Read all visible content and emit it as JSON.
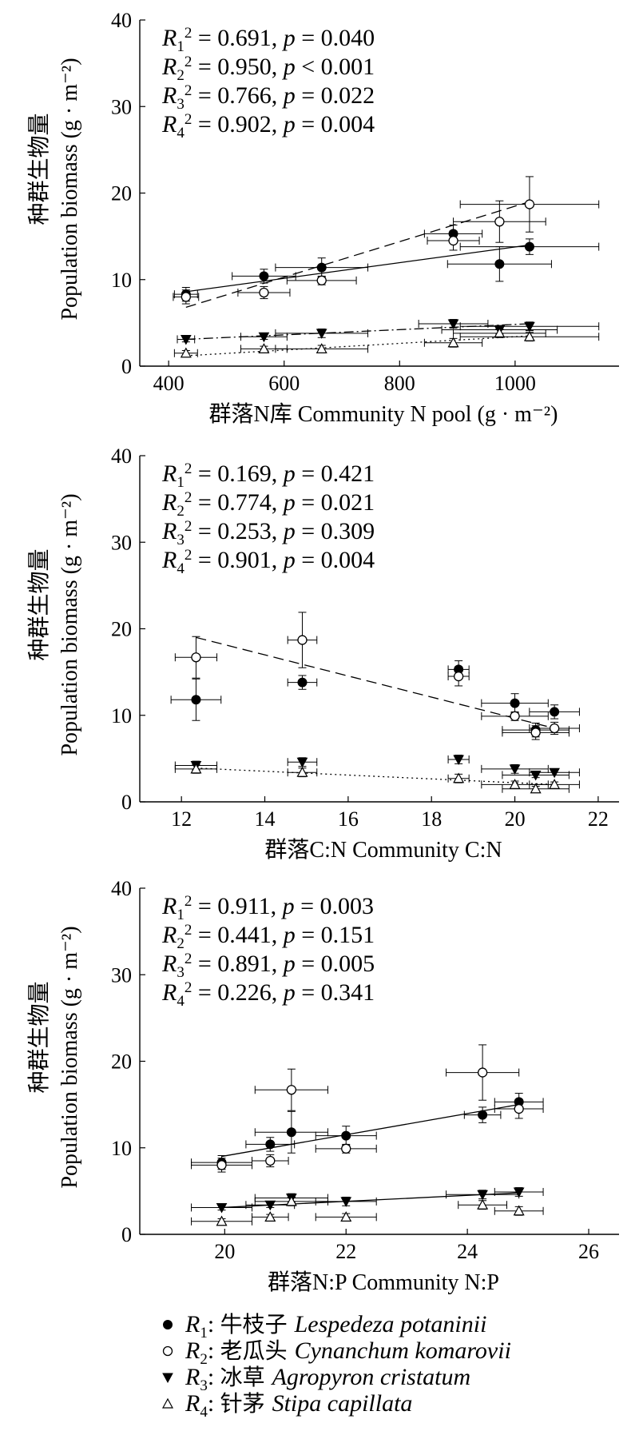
{
  "chart_data": [
    {
      "type": "scatter",
      "xlabel": "群落N库  Community N pool  (g · m⁻²)",
      "ylabel_zh": "种群生物量",
      "ylabel_en": "Population biomass (g · m⁻²)",
      "xlim": [
        350,
        1180
      ],
      "ylim": [
        0,
        40
      ],
      "xticks": [
        400,
        600,
        800,
        1000
      ],
      "yticks": [
        0,
        10,
        20,
        30,
        40
      ],
      "stats": [
        {
          "sub": "1",
          "r2": "0.691",
          "p": "p = 0.040"
        },
        {
          "sub": "2",
          "r2": "0.950",
          "p": "p < 0.001"
        },
        {
          "sub": "3",
          "r2": "0.766",
          "p": "p = 0.022"
        },
        {
          "sub": "4",
          "r2": "0.902",
          "p": "p = 0.004"
        }
      ],
      "series": [
        {
          "name": "R1",
          "marker": "filled-circle",
          "line": "solid",
          "fit": [
            [
              430,
              8.6
            ],
            [
              1025,
              14.0
            ]
          ],
          "points": [
            {
              "x": 430,
              "y": 8.3,
              "xerr": 20,
              "yerr": 0.8
            },
            {
              "x": 565,
              "y": 10.4,
              "xerr": 55,
              "yerr": 0.8
            },
            {
              "x": 665,
              "y": 11.4,
              "xerr": 80,
              "yerr": 1.1
            },
            {
              "x": 893,
              "y": 15.3,
              "xerr": 50,
              "yerr": 1.0
            },
            {
              "x": 973,
              "y": 11.8,
              "xerr": 90,
              "yerr": 2.0
            },
            {
              "x": 1025,
              "y": 13.8,
              "xerr": 120,
              "yerr": 0.9
            }
          ]
        },
        {
          "name": "R2",
          "marker": "open-circle",
          "line": "dashed",
          "fit": [
            [
              430,
              6.8
            ],
            [
              1025,
              19.0
            ]
          ],
          "points": [
            {
              "x": 430,
              "y": 8.0,
              "xerr": 22,
              "yerr": 0.8
            },
            {
              "x": 565,
              "y": 8.5,
              "xerr": 45,
              "yerr": 0.7
            },
            {
              "x": 665,
              "y": 9.9,
              "xerr": 60,
              "yerr": 0.5
            },
            {
              "x": 893,
              "y": 14.5,
              "xerr": 45,
              "yerr": 1.1
            },
            {
              "x": 973,
              "y": 16.7,
              "xerr": 80,
              "yerr": 2.4
            },
            {
              "x": 1025,
              "y": 18.7,
              "xerr": 120,
              "yerr": 3.2
            }
          ]
        },
        {
          "name": "R3",
          "marker": "filled-triangle-down",
          "line": "dashdot",
          "fit": [
            [
              430,
              3.1
            ],
            [
              1025,
              4.9
            ]
          ],
          "points": [
            {
              "x": 430,
              "y": 3.1,
              "xerr": 15,
              "yerr": 0.3
            },
            {
              "x": 565,
              "y": 3.4,
              "xerr": 40,
              "yerr": 0.3
            },
            {
              "x": 665,
              "y": 3.8,
              "xerr": 80,
              "yerr": 0.5
            },
            {
              "x": 893,
              "y": 4.9,
              "xerr": 60,
              "yerr": 0.5
            },
            {
              "x": 973,
              "y": 4.2,
              "xerr": 100,
              "yerr": 0.5
            },
            {
              "x": 1025,
              "y": 4.6,
              "xerr": 120,
              "yerr": 0.5
            }
          ]
        },
        {
          "name": "R4",
          "marker": "open-triangle-up",
          "line": "dotted",
          "fit": [
            [
              430,
              1.2
            ],
            [
              1025,
              3.5
            ]
          ],
          "points": [
            {
              "x": 430,
              "y": 1.5,
              "xerr": 20,
              "yerr": 0.3
            },
            {
              "x": 565,
              "y": 2.0,
              "xerr": 40,
              "yerr": 0.3
            },
            {
              "x": 665,
              "y": 2.0,
              "xerr": 80,
              "yerr": 0.4
            },
            {
              "x": 893,
              "y": 2.7,
              "xerr": 50,
              "yerr": 0.5
            },
            {
              "x": 973,
              "y": 3.8,
              "xerr": 80,
              "yerr": 0.5
            },
            {
              "x": 1025,
              "y": 3.4,
              "xerr": 120,
              "yerr": 0.5
            }
          ]
        }
      ]
    },
    {
      "type": "scatter",
      "xlabel": "群落C:N  Community C:N",
      "ylabel_zh": "种群生物量",
      "ylabel_en": "Population biomass (g · m⁻²)",
      "xlim": [
        11,
        22.5
      ],
      "ylim": [
        0,
        40
      ],
      "xticks": [
        12,
        14,
        16,
        18,
        20,
        22
      ],
      "yticks": [
        0,
        10,
        20,
        30,
        40
      ],
      "stats": [
        {
          "sub": "1",
          "r2": "0.169",
          "p": "p = 0.421"
        },
        {
          "sub": "2",
          "r2": "0.774",
          "p": "p = 0.021"
        },
        {
          "sub": "3",
          "r2": "0.253",
          "p": "p = 0.309"
        },
        {
          "sub": "4",
          "r2": "0.901",
          "p": "p = 0.004"
        }
      ],
      "series": [
        {
          "name": "R1",
          "marker": "filled-circle",
          "line": "none",
          "fit": null,
          "points": [
            {
              "x": 12.35,
              "y": 11.8,
              "xerr": 0.6,
              "yerr": 2.4
            },
            {
              "x": 14.9,
              "y": 13.8,
              "xerr": 0.35,
              "yerr": 0.8
            },
            {
              "x": 18.65,
              "y": 15.3,
              "xerr": 0.25,
              "yerr": 1.0
            },
            {
              "x": 20.0,
              "y": 11.4,
              "xerr": 0.8,
              "yerr": 1.1
            },
            {
              "x": 20.5,
              "y": 8.3,
              "xerr": 0.8,
              "yerr": 0.8
            },
            {
              "x": 20.95,
              "y": 10.4,
              "xerr": 0.6,
              "yerr": 0.8
            }
          ]
        },
        {
          "name": "R2",
          "marker": "open-circle",
          "line": "dashed",
          "fit": [
            [
              12.35,
              19.0
            ],
            [
              20.95,
              8.5
            ]
          ],
          "points": [
            {
              "x": 12.35,
              "y": 16.7,
              "xerr": 0.5,
              "yerr": 2.4
            },
            {
              "x": 14.9,
              "y": 18.7,
              "xerr": 0.35,
              "yerr": 3.2
            },
            {
              "x": 18.65,
              "y": 14.5,
              "xerr": 0.25,
              "yerr": 1.1
            },
            {
              "x": 20.0,
              "y": 9.9,
              "xerr": 0.8,
              "yerr": 0.5
            },
            {
              "x": 20.5,
              "y": 8.0,
              "xerr": 0.8,
              "yerr": 0.8
            },
            {
              "x": 20.95,
              "y": 8.5,
              "xerr": 0.6,
              "yerr": 0.7
            }
          ]
        },
        {
          "name": "R3",
          "marker": "filled-triangle-down",
          "line": "none",
          "fit": null,
          "points": [
            {
              "x": 12.35,
              "y": 4.2,
              "xerr": 0.5,
              "yerr": 0.5
            },
            {
              "x": 14.9,
              "y": 4.6,
              "xerr": 0.35,
              "yerr": 0.5
            },
            {
              "x": 18.65,
              "y": 4.9,
              "xerr": 0.25,
              "yerr": 0.5
            },
            {
              "x": 20.0,
              "y": 3.8,
              "xerr": 0.8,
              "yerr": 0.5
            },
            {
              "x": 20.5,
              "y": 3.1,
              "xerr": 0.8,
              "yerr": 0.3
            },
            {
              "x": 20.95,
              "y": 3.4,
              "xerr": 0.6,
              "yerr": 0.3
            }
          ]
        },
        {
          "name": "R4",
          "marker": "open-triangle-up",
          "line": "dotted",
          "fit": [
            [
              12.35,
              3.9
            ],
            [
              20.95,
              2.0
            ]
          ],
          "points": [
            {
              "x": 12.35,
              "y": 3.8,
              "xerr": 0.5,
              "yerr": 0.5
            },
            {
              "x": 14.9,
              "y": 3.4,
              "xerr": 0.35,
              "yerr": 0.5
            },
            {
              "x": 18.65,
              "y": 2.7,
              "xerr": 0.25,
              "yerr": 0.5
            },
            {
              "x": 20.0,
              "y": 2.0,
              "xerr": 0.8,
              "yerr": 0.4
            },
            {
              "x": 20.5,
              "y": 1.5,
              "xerr": 0.8,
              "yerr": 0.3
            },
            {
              "x": 20.95,
              "y": 2.0,
              "xerr": 0.6,
              "yerr": 0.3
            }
          ]
        }
      ]
    },
    {
      "type": "scatter",
      "xlabel": "群落N:P  Community N:P",
      "ylabel_zh": "种群生物量",
      "ylabel_en": "Population biomass (g · m⁻²)",
      "xlim": [
        18.6,
        26.5
      ],
      "ylim": [
        0,
        40
      ],
      "xticks": [
        20,
        22,
        24,
        26
      ],
      "yticks": [
        0,
        10,
        20,
        30,
        40
      ],
      "stats": [
        {
          "sub": "1",
          "r2": "0.911",
          "p": "p = 0.003"
        },
        {
          "sub": "2",
          "r2": "0.441",
          "p": "p = 0.151"
        },
        {
          "sub": "3",
          "r2": "0.891",
          "p": "p = 0.005"
        },
        {
          "sub": "4",
          "r2": "0.226",
          "p": "p = 0.341"
        }
      ],
      "series": [
        {
          "name": "R1",
          "marker": "filled-circle",
          "line": "solid",
          "fit": [
            [
              19.95,
              9.0
            ],
            [
              24.85,
              15.0
            ]
          ],
          "points": [
            {
              "x": 19.95,
              "y": 8.3,
              "xerr": 0.5,
              "yerr": 0.8
            },
            {
              "x": 20.75,
              "y": 10.4,
              "xerr": 0.4,
              "yerr": 0.8
            },
            {
              "x": 21.1,
              "y": 11.8,
              "xerr": 0.6,
              "yerr": 2.4
            },
            {
              "x": 22.0,
              "y": 11.4,
              "xerr": 0.5,
              "yerr": 1.1
            },
            {
              "x": 24.25,
              "y": 13.8,
              "xerr": 0.3,
              "yerr": 0.9
            },
            {
              "x": 24.85,
              "y": 15.3,
              "xerr": 0.4,
              "yerr": 1.0
            }
          ]
        },
        {
          "name": "R2",
          "marker": "open-circle",
          "line": "none",
          "fit": null,
          "points": [
            {
              "x": 19.95,
              "y": 8.0,
              "xerr": 0.5,
              "yerr": 0.8
            },
            {
              "x": 20.75,
              "y": 8.5,
              "xerr": 0.3,
              "yerr": 0.7
            },
            {
              "x": 21.1,
              "y": 16.7,
              "xerr": 0.6,
              "yerr": 2.4
            },
            {
              "x": 22.0,
              "y": 9.9,
              "xerr": 0.5,
              "yerr": 0.5
            },
            {
              "x": 24.25,
              "y": 18.7,
              "xerr": 0.6,
              "yerr": 3.2
            },
            {
              "x": 24.85,
              "y": 14.5,
              "xerr": 0.4,
              "yerr": 1.1
            }
          ]
        },
        {
          "name": "R3",
          "marker": "filled-triangle-down",
          "line": "solid",
          "fit": [
            [
              19.95,
              3.1
            ],
            [
              24.85,
              4.8
            ]
          ],
          "points": [
            {
              "x": 19.95,
              "y": 3.1,
              "xerr": 0.5,
              "yerr": 0.3
            },
            {
              "x": 20.75,
              "y": 3.4,
              "xerr": 0.4,
              "yerr": 0.3
            },
            {
              "x": 21.1,
              "y": 4.2,
              "xerr": 0.6,
              "yerr": 0.5
            },
            {
              "x": 22.0,
              "y": 3.8,
              "xerr": 0.5,
              "yerr": 0.5
            },
            {
              "x": 24.25,
              "y": 4.6,
              "xerr": 0.6,
              "yerr": 0.5
            },
            {
              "x": 24.85,
              "y": 4.9,
              "xerr": 0.4,
              "yerr": 0.5
            }
          ]
        },
        {
          "name": "R4",
          "marker": "open-triangle-up",
          "line": "none",
          "fit": null,
          "points": [
            {
              "x": 19.95,
              "y": 1.5,
              "xerr": 0.5,
              "yerr": 0.3
            },
            {
              "x": 20.75,
              "y": 2.0,
              "xerr": 0.3,
              "yerr": 0.3
            },
            {
              "x": 21.1,
              "y": 3.8,
              "xerr": 0.6,
              "yerr": 0.5
            },
            {
              "x": 22.0,
              "y": 2.0,
              "xerr": 0.5,
              "yerr": 0.4
            },
            {
              "x": 24.25,
              "y": 3.4,
              "xerr": 0.4,
              "yerr": 0.5
            },
            {
              "x": 24.85,
              "y": 2.7,
              "xerr": 0.4,
              "yerr": 0.5
            }
          ]
        }
      ]
    }
  ],
  "legend": [
    {
      "marker": "filled-circle",
      "sub": "1",
      "zh": "牛枝子",
      "latin": "Lespedeza potaninii"
    },
    {
      "marker": "open-circle",
      "sub": "2",
      "zh": "老瓜头",
      "latin": "Cynanchum komarovii"
    },
    {
      "marker": "filled-triangle-down",
      "sub": "3",
      "zh": "冰草",
      "latin": "Agropyron cristatum"
    },
    {
      "marker": "open-triangle-up",
      "sub": "4",
      "zh": "针茅",
      "latin": "Stipa capillata"
    }
  ]
}
